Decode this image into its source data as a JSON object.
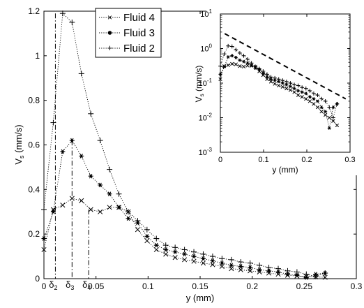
{
  "chart_data": [
    {
      "type": "line",
      "xlabel": "y (mm)",
      "ylabel": "V",
      "ylabel_sub": "s",
      "ylabel_unit": " (mm/s)",
      "xlim": [
        0,
        0.3
      ],
      "ylim": [
        0,
        1.2
      ],
      "xticks": [
        {
          "v": 0,
          "label": "0"
        },
        {
          "v": 0.05,
          "label": "0.05"
        },
        {
          "v": 0.1,
          "label": "0.1"
        },
        {
          "v": 0.15,
          "label": "0.15"
        },
        {
          "v": 0.2,
          "label": "0.2"
        },
        {
          "v": 0.25,
          "label": "0.25"
        },
        {
          "v": 0.3,
          "label": "0.3"
        }
      ],
      "yticks": [
        {
          "v": 0,
          "label": "0"
        },
        {
          "v": 0.2,
          "label": "0.2"
        },
        {
          "v": 0.4,
          "label": "0.4"
        },
        {
          "v": 0.6,
          "label": "0.6"
        },
        {
          "v": 0.8,
          "label": "0.8"
        },
        {
          "v": 1.0,
          "label": "1"
        },
        {
          "v": 1.2,
          "label": "1.2"
        }
      ],
      "legend_position": "top-left",
      "series": [
        {
          "name": "Fluid 4",
          "marker": "x",
          "x": [
            0,
            0.009,
            0.018,
            0.027,
            0.036,
            0.045,
            0.054,
            0.063,
            0.072,
            0.081,
            0.09,
            0.099,
            0.108,
            0.117,
            0.126,
            0.135,
            0.144,
            0.153,
            0.162,
            0.171,
            0.18,
            0.189,
            0.198,
            0.207,
            0.216,
            0.225,
            0.234,
            0.243,
            0.252,
            0.261,
            0.27
          ],
          "values": [
            0.13,
            0.31,
            0.33,
            0.36,
            0.35,
            0.31,
            0.3,
            0.32,
            0.32,
            0.3,
            0.22,
            0.17,
            0.13,
            0.11,
            0.095,
            0.085,
            0.078,
            0.07,
            0.063,
            0.055,
            0.045,
            0.04,
            0.035,
            0.03,
            0.025,
            0.02,
            0.015,
            0.012,
            0.01,
            0.008,
            0.006
          ]
        },
        {
          "name": "Fluid 3",
          "marker": "*",
          "x": [
            0,
            0.009,
            0.018,
            0.027,
            0.036,
            0.045,
            0.054,
            0.063,
            0.072,
            0.081,
            0.09,
            0.099,
            0.108,
            0.117,
            0.126,
            0.135,
            0.144,
            0.153,
            0.162,
            0.171,
            0.18,
            0.189,
            0.198,
            0.207,
            0.216,
            0.225,
            0.234,
            0.243,
            0.252,
            0.261,
            0.27
          ],
          "values": [
            0.18,
            0.3,
            0.57,
            0.62,
            0.55,
            0.46,
            0.42,
            0.38,
            0.32,
            0.27,
            0.25,
            0.19,
            0.15,
            0.13,
            0.12,
            0.11,
            0.1,
            0.09,
            0.08,
            0.07,
            0.06,
            0.055,
            0.05,
            0.04,
            0.035,
            0.03,
            0.02,
            0.015,
            0.005,
            0.02,
            0.025
          ]
        },
        {
          "name": "Fluid 2",
          "marker": "+",
          "x": [
            0,
            0.009,
            0.018,
            0.027,
            0.036,
            0.045,
            0.054,
            0.063,
            0.072,
            0.081,
            0.09,
            0.099,
            0.108,
            0.117,
            0.126,
            0.135,
            0.144,
            0.153,
            0.162,
            0.171,
            0.18,
            0.189,
            0.198,
            0.207,
            0.216,
            0.225,
            0.234,
            0.243,
            0.252,
            0.261,
            0.27
          ],
          "values": [
            0.31,
            0.7,
            1.19,
            1.15,
            0.92,
            0.74,
            0.62,
            0.49,
            0.38,
            0.3,
            0.26,
            0.22,
            0.18,
            0.15,
            0.14,
            0.13,
            0.12,
            0.11,
            0.1,
            0.09,
            0.085,
            0.075,
            0.07,
            0.06,
            0.05,
            0.045,
            0.035,
            0.03,
            0.02,
            0.01,
            0.025
          ]
        }
      ],
      "annotations": [
        {
          "kind": "dashdot-vline",
          "x": 0.011,
          "ytop": 1.19,
          "label": "δ",
          "sub": "2"
        },
        {
          "kind": "dashdot-vline",
          "x": 0.027,
          "ytop": 0.62,
          "label": "δ",
          "sub": "3"
        },
        {
          "kind": "dashdot-vline",
          "x": 0.043,
          "ytop": 0.31,
          "label": "δ",
          "sub": "4"
        }
      ]
    },
    {
      "type": "line",
      "role": "inset",
      "xlabel": "y (mm)",
      "ylabel": "V",
      "ylabel_sub": "s",
      "ylabel_unit": " (mm/s)",
      "xscale": "linear",
      "yscale": "log",
      "xlim": [
        0,
        0.3
      ],
      "ylim": [
        0.001,
        10
      ],
      "xticks": [
        {
          "v": 0,
          "label": "0"
        },
        {
          "v": 0.1,
          "label": "0.1"
        },
        {
          "v": 0.2,
          "label": "0.2"
        },
        {
          "v": 0.3,
          "label": "0.3"
        }
      ],
      "yticks": [
        {
          "v": 0.001,
          "base": "10",
          "exp": "-3"
        },
        {
          "v": 0.01,
          "base": "10",
          "exp": "-2"
        },
        {
          "v": 0.1,
          "base": "10",
          "exp": "-1"
        },
        {
          "v": 1,
          "base": "10",
          "exp": "0"
        },
        {
          "v": 10,
          "base": "10",
          "exp": "1"
        }
      ],
      "reference_line": {
        "style": "dashed",
        "x": [
          0.01,
          0.29
        ],
        "y": [
          2.7,
          0.035
        ]
      }
    }
  ]
}
